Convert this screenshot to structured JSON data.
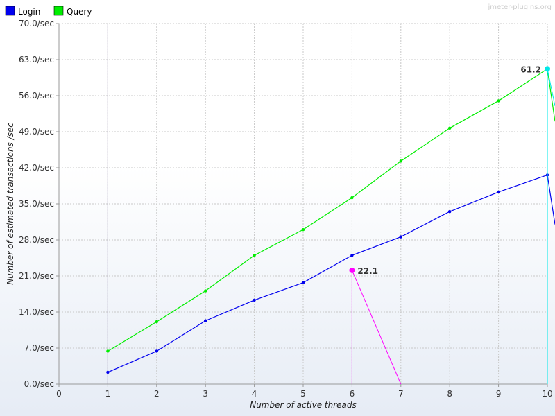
{
  "chart_data": {
    "type": "line",
    "watermark": "jmeter-plugins.org",
    "xlabel": "Number of active threads",
    "ylabel": "Number of estimated transactions /sec",
    "xlim": [
      0,
      10
    ],
    "ylim": [
      0,
      70
    ],
    "x_ticks": [
      "0",
      "1",
      "2",
      "3",
      "4",
      "5",
      "6",
      "7",
      "8",
      "9",
      "10"
    ],
    "y_ticks": [
      "0.0/sec",
      "7.0/sec",
      "14.0/sec",
      "21.0/sec",
      "28.0/sec",
      "35.0/sec",
      "42.0/sec",
      "49.0/sec",
      "56.0/sec",
      "63.0/sec",
      "70.0/sec"
    ],
    "y_tick_values": [
      0,
      7,
      14,
      21,
      28,
      35,
      42,
      49,
      56,
      63,
      70
    ],
    "grid": true,
    "legend_position": "top-left",
    "series": [
      {
        "name": "Login",
        "color": "#0000ee",
        "x": [
          1,
          2,
          3,
          4,
          5,
          6,
          7,
          8,
          9,
          10
        ],
        "values": [
          2.3,
          6.4,
          12.3,
          16.3,
          19.7,
          25.0,
          28.6,
          33.5,
          37.3,
          40.6
        ]
      },
      {
        "name": "Query",
        "color": "#00ee00",
        "x": [
          1,
          2,
          3,
          4,
          5,
          6,
          7,
          8,
          9,
          10
        ],
        "values": [
          6.4,
          12.1,
          18.1,
          25.0,
          30.0,
          36.2,
          43.3,
          49.7,
          55.0,
          61.2
        ]
      }
    ],
    "annotations": [
      {
        "label": "22.1",
        "x": 6,
        "y": 22.1,
        "color": "#ff00ff"
      },
      {
        "label": "61.2",
        "x": 10,
        "y": 61.2,
        "color": "#00e8e8"
      }
    ]
  }
}
